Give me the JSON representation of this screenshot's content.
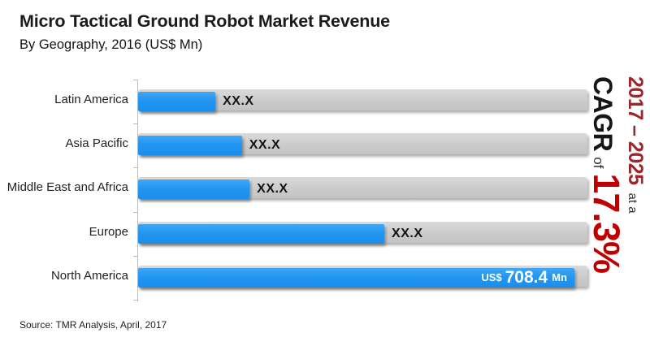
{
  "header": {
    "title": "Micro Tactical Ground Robot Market Revenue",
    "subtitle": "By Geography, 2016 (US$ Mn)"
  },
  "footer": {
    "source": "Source: TMR Analysis, April, 2017"
  },
  "cagr_annotation": {
    "period": "2017 – 2025",
    "connector": "at a",
    "metric": "CAGR",
    "of": "of",
    "value": "17.3%"
  },
  "colors": {
    "bar_fill_blue": "#2196f3",
    "bar_track_gray": "#cbcbcb",
    "cagr_value_red": "#c00000",
    "cagr_period_dark_red": "#9e262b",
    "text_dark": "#1b1b1b"
  },
  "chart_data": {
    "type": "bar",
    "orientation": "horizontal",
    "title": "Micro Tactical Ground Robot Market Revenue",
    "subtitle": "By Geography, 2016 (US$ Mn)",
    "unit": "US$ Mn",
    "categories": [
      "Latin America",
      "Asia Pacific",
      "Middle East and Africa",
      "Europe",
      "North America"
    ],
    "value_labels": [
      "XX.X",
      "XX.X",
      "XX.X",
      "XX.X",
      "US$ 708.4 Mn"
    ],
    "values_us_mn": [
      null,
      null,
      null,
      null,
      708.4
    ],
    "bar_length_pct_of_track": [
      17.2,
      23.1,
      24.8,
      54.8,
      97.1
    ],
    "value_label_position": [
      "outside",
      "outside",
      "outside",
      "outside",
      "inside"
    ],
    "north_america_label_parts": {
      "currency": "US$",
      "amount": "708.4",
      "unit": "Mn"
    },
    "value_axis_visible": false,
    "grid": false,
    "legend": "none",
    "annotation": "2017 – 2025 at a CAGR of 17.3%"
  }
}
